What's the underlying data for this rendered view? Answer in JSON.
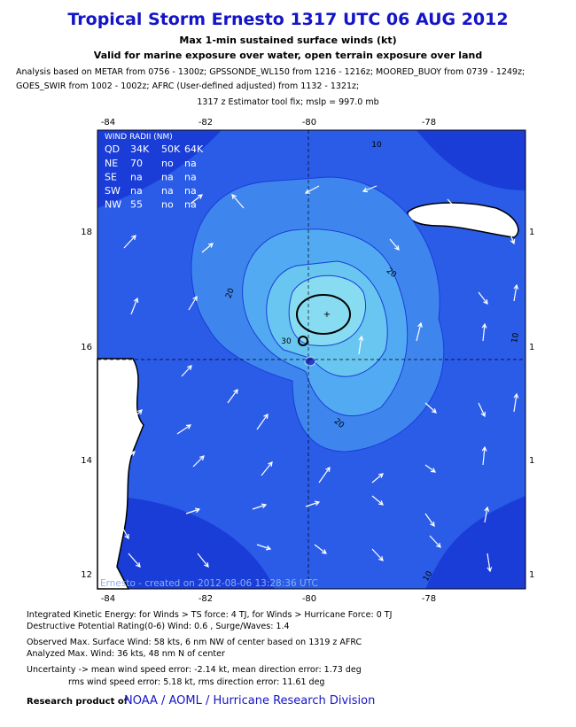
{
  "header": {
    "title": "Tropical Storm Ernesto 1317 UTC 06 AUG 2012",
    "subtitle": [
      "Max 1-min sustained surface winds (kt)",
      "Valid for marine exposure over water, open terrain exposure over land"
    ],
    "analysis": [
      "Analysis based on METAR from 0756 - 1300z; GPSSONDE_WL150 from 1216 - 1216z; MOORED_BUOY from 0739 - 1249z;",
      "GOES_SWIR from 1002 - 1002z; AFRC (User-defined adjusted) from 1132 - 1321z;"
    ],
    "fix": "1317 z Estimator tool fix; mslp = 997.0 mb"
  },
  "map": {
    "lon_labels": [
      "-84",
      "-82",
      "-80",
      "-78"
    ],
    "lat_labels": [
      "18",
      "16",
      "14",
      "12"
    ],
    "right_labels": [
      "1",
      "1",
      "1",
      "1"
    ],
    "contour_labels": [
      "10",
      "20",
      "20",
      "30",
      "20",
      "10",
      "10"
    ],
    "wind_radii": {
      "title": "WIND RADII (NM)",
      "header": [
        "QD",
        "34K",
        "50K",
        "64K"
      ],
      "rows": [
        [
          "NE",
          "70",
          "no",
          "na"
        ],
        [
          "SE",
          "na",
          "na",
          "na"
        ],
        [
          "SW",
          "na",
          "na",
          "na"
        ],
        [
          "NW",
          "55",
          "no",
          "na"
        ]
      ]
    },
    "watermark": "Ernesto - created on 2012-08-06 13:28:36 UTC"
  },
  "footer": {
    "lines": [
      "Integrated Kinetic Energy: for Winds > TS force: 4 TJ, for Winds > Hurricane Force: 0 TJ",
      "Destructive Potential Rating(0-6)  Wind: 0.6 , Surge/Waves: 1.4",
      "Observed Max. Surface Wind: 58 kts, 6 nm NW of center based on 1319 z AFRC",
      "Analyzed Max. Wind: 36 kts, 48 nm  N of center",
      "Uncertainty -> mean wind speed error:  -2.14 kt, mean direction error: 1.73 deg",
      "rms wind speed error: 5.18 kt, rms direction error: 11.61 deg"
    ],
    "credit": "Research product of",
    "org": "NOAA  /  AOML  /  Hurricane Research Division"
  }
}
